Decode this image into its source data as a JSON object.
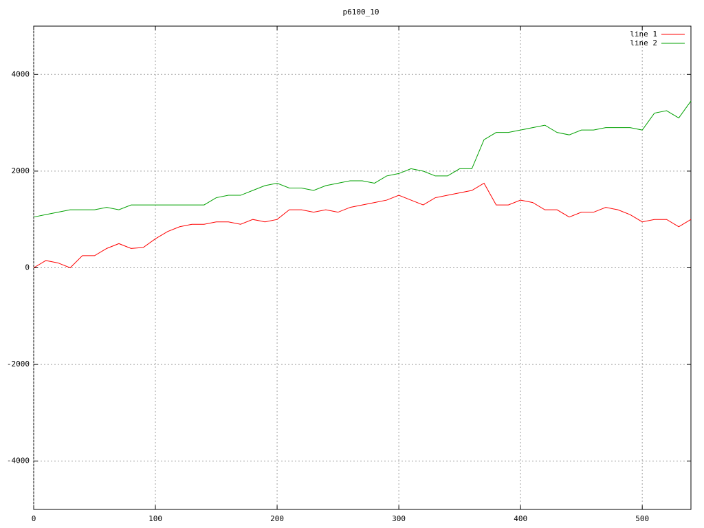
{
  "chart_data": {
    "type": "line",
    "title": "p6100_10",
    "x": [
      0,
      10,
      20,
      30,
      40,
      50,
      60,
      70,
      80,
      90,
      100,
      110,
      120,
      130,
      140,
      150,
      160,
      170,
      180,
      190,
      200,
      210,
      220,
      230,
      240,
      250,
      260,
      270,
      280,
      290,
      300,
      310,
      320,
      330,
      340,
      350,
      360,
      370,
      380,
      390,
      400,
      410,
      420,
      430,
      440,
      450,
      460,
      470,
      480,
      490,
      500,
      510,
      520,
      530,
      540
    ],
    "series": [
      {
        "name": "line 1",
        "color": "#ff0000",
        "values": [
          0,
          150,
          100,
          0,
          250,
          250,
          400,
          500,
          400,
          420,
          600,
          750,
          850,
          900,
          900,
          950,
          950,
          900,
          1000,
          950,
          1000,
          1200,
          1200,
          1150,
          1200,
          1150,
          1250,
          1300,
          1350,
          1400,
          1500,
          1400,
          1300,
          1450,
          1500,
          1550,
          1600,
          1750,
          1300,
          1300,
          1400,
          1350,
          1200,
          1200,
          1050,
          1150,
          1150,
          1250,
          1200,
          1100,
          950,
          1000,
          1000,
          850,
          1000
        ]
      },
      {
        "name": "line 2",
        "color": "#00a000",
        "values": [
          1050,
          1100,
          1150,
          1200,
          1200,
          1200,
          1250,
          1200,
          1300,
          1300,
          1300,
          1300,
          1300,
          1300,
          1300,
          1450,
          1500,
          1500,
          1600,
          1700,
          1750,
          1650,
          1650,
          1600,
          1700,
          1750,
          1800,
          1800,
          1750,
          1900,
          1950,
          2050,
          2000,
          1900,
          1900,
          2050,
          2050,
          2650,
          2800,
          2800,
          2850,
          2900,
          2950,
          2800,
          2750,
          2850,
          2850,
          2900,
          2900,
          2900,
          2850,
          3200,
          3250,
          3100,
          3450
        ]
      }
    ],
    "xlim": [
      0,
      540
    ],
    "xticks": [
      0,
      100,
      200,
      300,
      400,
      500
    ],
    "ylim": [
      -5000,
      5000
    ],
    "yticks": [
      -4000,
      -2000,
      0,
      2000,
      4000
    ],
    "grid": true,
    "legend": "top-right"
  }
}
